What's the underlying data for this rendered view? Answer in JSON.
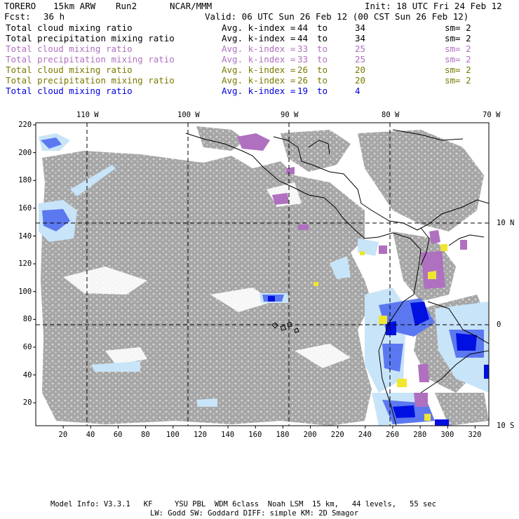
{
  "header": {
    "model": "TORERO",
    "resolution": "15km ARW",
    "run": "Run2",
    "center": "NCAR/MMM",
    "init": "Init: 18 UTC Fri 24 Feb 12",
    "fcst_label": "Fcst:",
    "fcst_value": "36 h",
    "valid": "Valid: 06 UTC Sun 26 Feb 12 (00 CST Sun 26 Feb 12)"
  },
  "legend": [
    {
      "field": "Total cloud mixing ratio",
      "avg": "Avg. k-index =",
      "k1": "44",
      "to": "to",
      "k2": "34",
      "sm": "sm= 2",
      "color": "#000000"
    },
    {
      "field": "Total precipitation mixing ratio",
      "avg": "Avg. k-index =",
      "k1": "44",
      "to": "to",
      "k2": "34",
      "sm": "sm= 2",
      "color": "#000000"
    },
    {
      "field": "Total cloud mixing ratio",
      "avg": "Avg. k-index =",
      "k1": "33",
      "to": "to",
      "k2": "25",
      "sm": "sm= 2",
      "color": "#b070c0"
    },
    {
      "field": "Total precipitation mixing ratio",
      "avg": "Avg. k-index =",
      "k1": "33",
      "to": "to",
      "k2": "25",
      "sm": "sm= 2",
      "color": "#b070c0"
    },
    {
      "field": "Total cloud mixing ratio",
      "avg": "Avg. k-index =",
      "k1": "26",
      "to": "to",
      "k2": "20",
      "sm": "sm= 2",
      "color": "#7a7a00"
    },
    {
      "field": "Total precipitation mixing ratio",
      "avg": "Avg. k-index =",
      "k1": "26",
      "to": "to",
      "k2": "20",
      "sm": "sm= 2",
      "color": "#7a7a00"
    },
    {
      "field": "Total cloud mixing ratio",
      "avg": "Avg. k-index =",
      "k1": "19",
      "to": "to",
      "k2": "4",
      "sm": "",
      "color": "#0000e0"
    }
  ],
  "map": {
    "lon_labels": [
      "110 W",
      "100 W",
      "90 W",
      "80 W",
      "70 W"
    ],
    "lat_labels": [
      "10 N",
      "0",
      "10 S"
    ],
    "x_ticks": [
      "20",
      "40",
      "60",
      "80",
      "100",
      "120",
      "140",
      "160",
      "180",
      "200",
      "220",
      "240",
      "260",
      "280",
      "300",
      "320"
    ],
    "y_ticks": [
      "220",
      "200",
      "180",
      "160",
      "140",
      "120",
      "100",
      "80",
      "60",
      "40",
      "20"
    ],
    "colors": {
      "cloud_gray": "#a6a6a6",
      "light_blue": "#c8e4f8",
      "mid_blue": "#5c78f0",
      "deep_blue": "#0010e0",
      "purple": "#b070c0",
      "yellow": "#f0e630",
      "coast": "#000000"
    }
  },
  "footer": {
    "line1": "Model Info: V3.3.1   KF     YSU PBL  WDM 6class  Noah LSM  15 km,   44 levels,   55 sec",
    "line2": "LW: Godd SW: Goddard DIFF: simple KM: 2D Smagor"
  }
}
